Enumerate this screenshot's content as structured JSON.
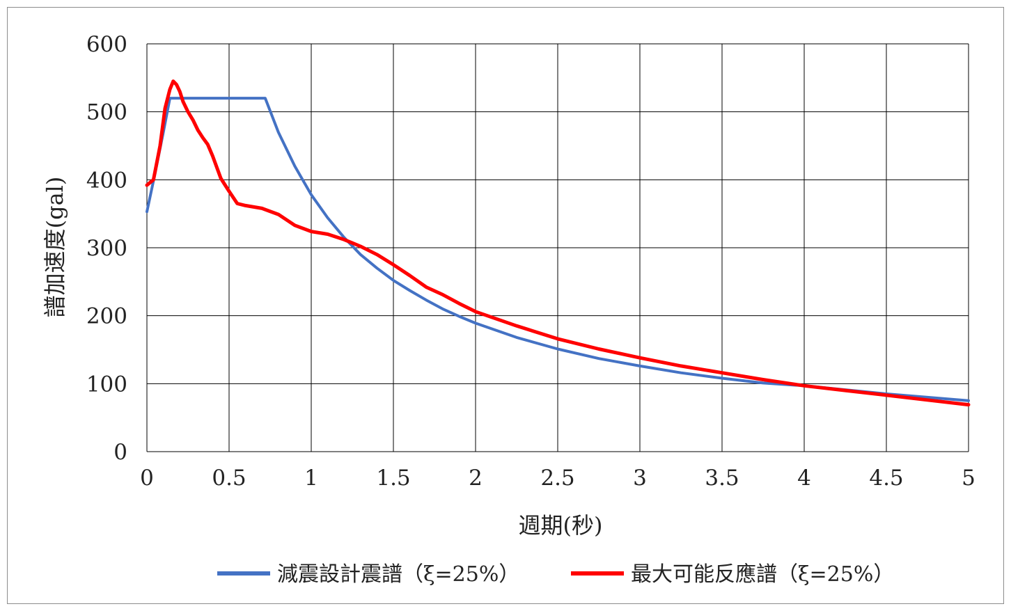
{
  "chart_data": {
    "type": "line",
    "title": "",
    "xlabel": "週期(秒)",
    "ylabel": "譜加速度(gal)",
    "xlim": [
      0,
      5
    ],
    "ylim": [
      0,
      600
    ],
    "grid": true,
    "legend_position": "bottom",
    "x_ticks": [
      "0",
      "0.5",
      "1",
      "1.5",
      "2",
      "2.5",
      "3",
      "3.5",
      "4",
      "4.5",
      "5"
    ],
    "y_ticks": [
      "0",
      "100",
      "200",
      "300",
      "400",
      "500",
      "600"
    ],
    "series": [
      {
        "name": "減震設計震譜（ξ=25%）",
        "color": "#4472c4",
        "x": [
          0,
          0.05,
          0.1,
          0.14,
          0.2,
          0.3,
          0.4,
          0.5,
          0.6,
          0.72,
          0.8,
          0.9,
          1.0,
          1.1,
          1.2,
          1.3,
          1.4,
          1.5,
          1.6,
          1.7,
          1.8,
          1.9,
          2.0,
          2.25,
          2.5,
          2.75,
          3.0,
          3.25,
          3.5,
          3.75,
          4.0,
          4.25,
          4.5,
          4.75,
          5.0
        ],
        "y": [
          353,
          410,
          470,
          520,
          520,
          520,
          520,
          520,
          520,
          520,
          470,
          420,
          378,
          344,
          315,
          290,
          270,
          252,
          237,
          223,
          210,
          199,
          189,
          168,
          151,
          137,
          126,
          116,
          108,
          101,
          97,
          91,
          85,
          80,
          75
        ]
      },
      {
        "name": "最大可能反應譜（ξ=25%）",
        "color": "#ff0000",
        "x": [
          0,
          0.04,
          0.08,
          0.11,
          0.14,
          0.16,
          0.18,
          0.2,
          0.22,
          0.25,
          0.28,
          0.31,
          0.34,
          0.37,
          0.4,
          0.45,
          0.5,
          0.55,
          0.6,
          0.7,
          0.8,
          0.9,
          1.0,
          1.1,
          1.2,
          1.3,
          1.4,
          1.5,
          1.6,
          1.7,
          1.8,
          1.9,
          2.0,
          2.25,
          2.5,
          2.75,
          3.0,
          3.25,
          3.5,
          3.75,
          4.0,
          4.25,
          4.5,
          4.75,
          5.0
        ],
        "y": [
          392,
          400,
          450,
          505,
          533,
          545,
          540,
          530,
          515,
          500,
          488,
          473,
          462,
          452,
          435,
          402,
          383,
          365,
          362,
          358,
          349,
          333,
          324,
          320,
          312,
          302,
          290,
          275,
          259,
          242,
          231,
          218,
          206,
          185,
          166,
          151,
          138,
          126,
          116,
          106,
          97,
          90,
          83,
          76,
          69
        ]
      }
    ]
  }
}
